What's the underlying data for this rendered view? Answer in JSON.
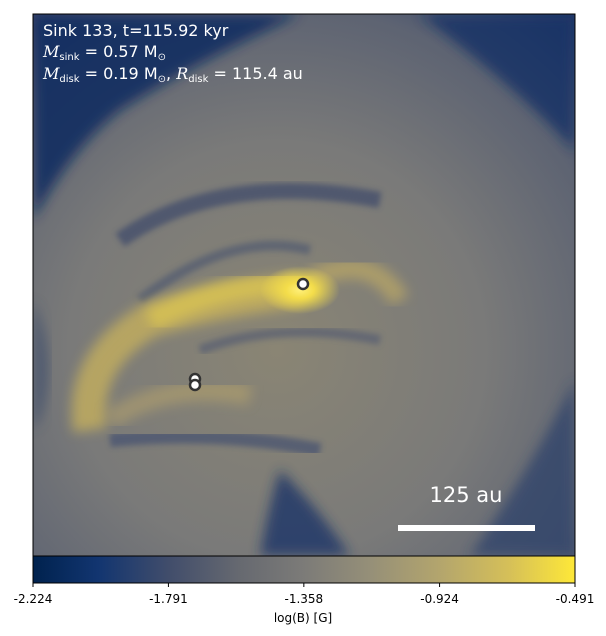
{
  "figure": {
    "annotation": {
      "line1": "Sink 133, t=115.92 kyr",
      "m_sink_symbol": "M",
      "m_sink_sub": "sink",
      "m_sink_value": " = 0.57 M",
      "m_disk_symbol": "M",
      "m_disk_sub": "disk",
      "m_disk_value": " = 0.19 M",
      "r_disk_symbol": "R",
      "r_disk_sub": "disk",
      "r_disk_value": " = 115.4 au",
      "sun_symbol": "⊙"
    },
    "scale_bar_label": "125 au",
    "colors": {
      "cmap_low": "#00224e",
      "cmap_mid": "#7c7b78",
      "cmap_high": "#fee838",
      "marker_edge": "#333333",
      "marker_face": "#ffffff",
      "scale_bar": "#ffffff"
    }
  },
  "chart_data": {
    "type": "heatmap",
    "colormap": "cividis",
    "colorbar_label": "log(B) [G]",
    "colorbar_range": [
      -2.224,
      -0.491
    ],
    "colorbar_ticks": [
      "-2.224",
      "-1.791",
      "-1.358",
      "-0.924",
      "-0.491"
    ],
    "field_description": "magnetic field strength map around sink particles with spiral arm structure",
    "sink_markers": 3
  }
}
